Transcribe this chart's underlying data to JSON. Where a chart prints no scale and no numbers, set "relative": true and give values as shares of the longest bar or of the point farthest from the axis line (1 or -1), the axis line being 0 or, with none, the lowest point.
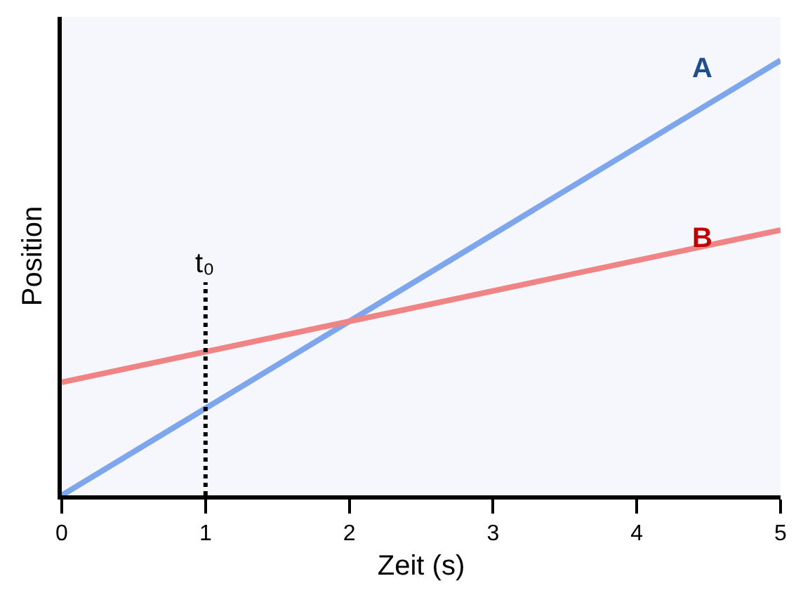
{
  "chart_data": {
    "type": "line",
    "relative": true,
    "xlabel": "Zeit (s)",
    "ylabel": "Position",
    "x": [
      0,
      5
    ],
    "xlim": [
      0,
      5
    ],
    "xticks": [
      0,
      1,
      2,
      3,
      4,
      5
    ],
    "series": [
      {
        "name": "A",
        "color": "#7ea6ec",
        "values": [
          0,
          1
        ]
      },
      {
        "name": "B",
        "color": "#f08383",
        "values": [
          0.26,
          0.61
        ]
      }
    ],
    "ref_lines": [
      {
        "axis": "x",
        "value": 1,
        "label": "t₀",
        "line_style": "dotted",
        "color": "#000000"
      }
    ],
    "legend": false,
    "grid": false
  }
}
